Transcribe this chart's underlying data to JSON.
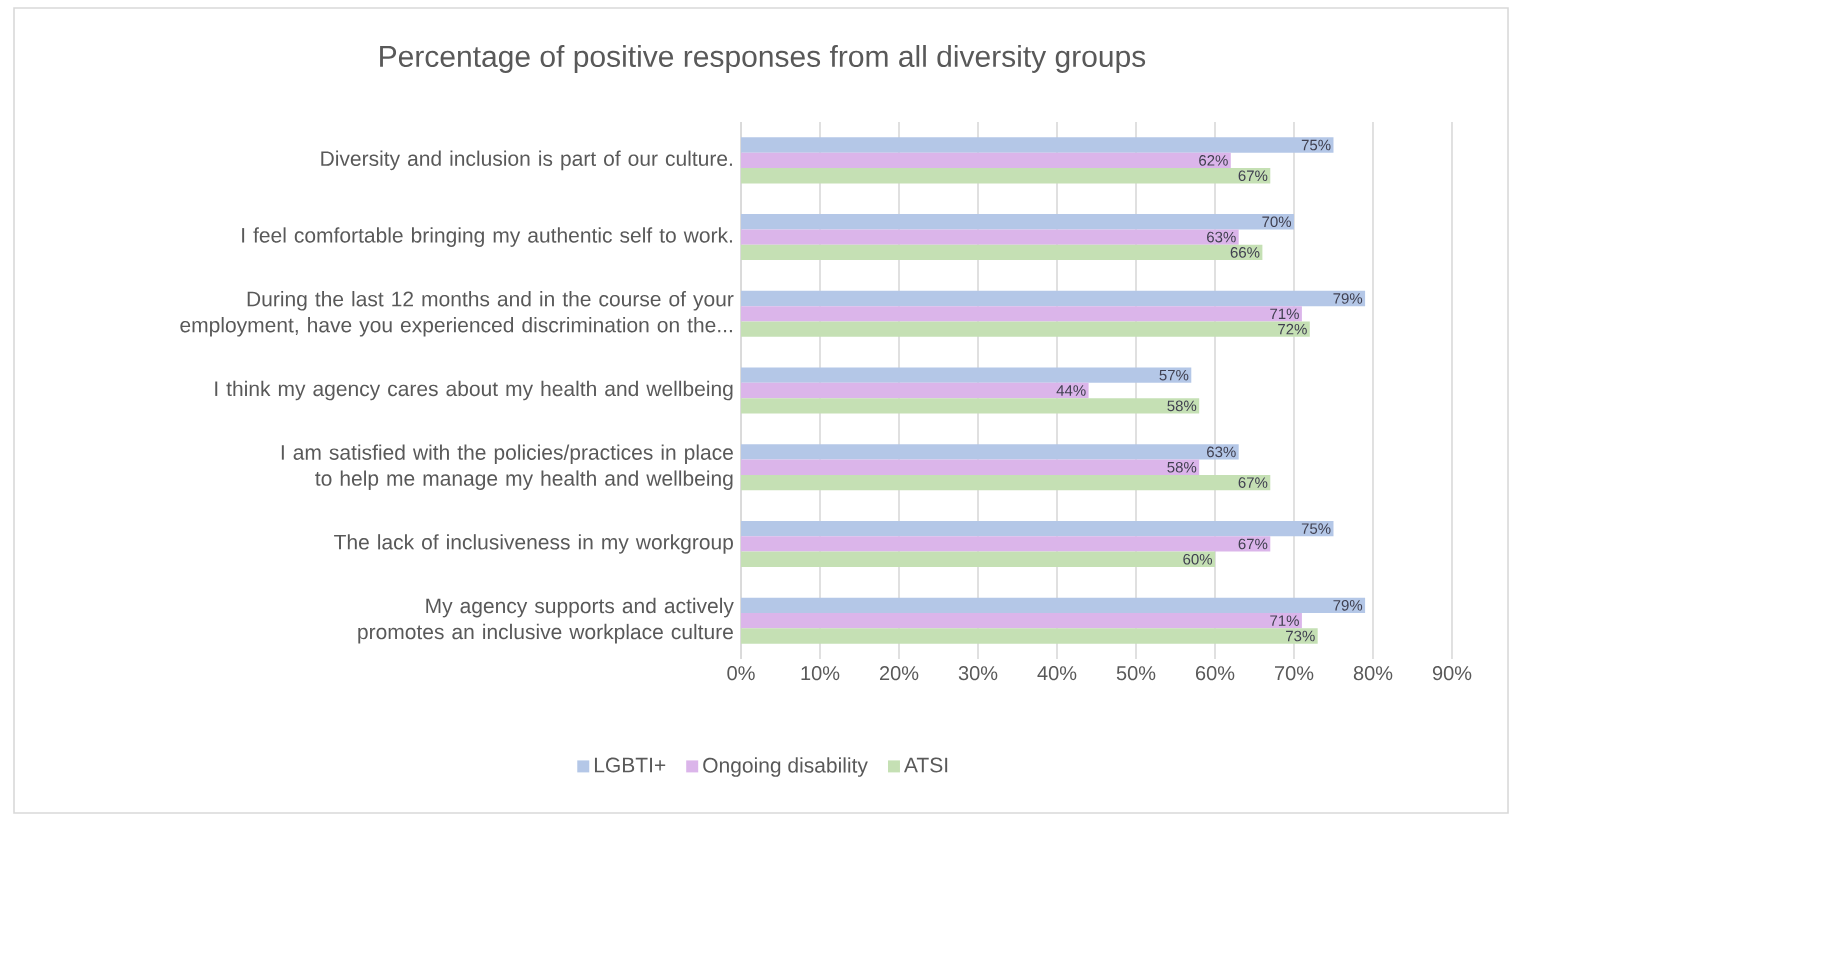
{
  "chart_data": {
    "type": "bar",
    "orientation": "horizontal",
    "title": "Percentage of positive responses from all diversity groups",
    "categories": [
      "Diversity and inclusion is part of our culture.",
      "I feel comfortable bringing my authentic self to work.",
      "During the last 12 months and in the course of your employment, have you experienced discrimination on the...",
      "I think my agency cares about my health and wellbeing",
      "I am satisfied with the policies/practices in place to help me manage my health and wellbeing",
      "The lack of inclusiveness in my workgroup",
      "My agency supports and actively promotes an inclusive workplace culture"
    ],
    "series": [
      {
        "name": "LGBTI+",
        "color": "#b4c7e7",
        "values": [
          75,
          70,
          79,
          57,
          63,
          75,
          79
        ],
        "value_labels": [
          "75%",
          "70%",
          "79%",
          "57%",
          "63%",
          "75%",
          "79%"
        ]
      },
      {
        "name": "Ongoing disability",
        "color": "#dbb5ea",
        "values": [
          62,
          63,
          71,
          44,
          58,
          67,
          71
        ],
        "value_labels": [
          "62%",
          "63%",
          "71%",
          "44%",
          "58%",
          "67%",
          "71%"
        ]
      },
      {
        "name": "ATSI",
        "color": "#c5e0b4",
        "values": [
          67,
          66,
          72,
          58,
          67,
          60,
          73
        ],
        "value_labels": [
          "67%",
          "66%",
          "72%",
          "58%",
          "67%",
          "60%",
          "73%"
        ]
      }
    ],
    "xlim": [
      0,
      90
    ],
    "xticks": [
      {
        "value": 0,
        "label": "0%"
      },
      {
        "value": 10,
        "label": "10%"
      },
      {
        "value": 20,
        "label": "20%"
      },
      {
        "value": 30,
        "label": "30%"
      },
      {
        "value": 40,
        "label": "40%"
      },
      {
        "value": 50,
        "label": "50%"
      },
      {
        "value": 60,
        "label": "60%"
      },
      {
        "value": 70,
        "label": "70%"
      },
      {
        "value": 80,
        "label": "80%"
      },
      {
        "value": 90,
        "label": "90%"
      }
    ],
    "grid": "x",
    "legend": "bottom"
  }
}
